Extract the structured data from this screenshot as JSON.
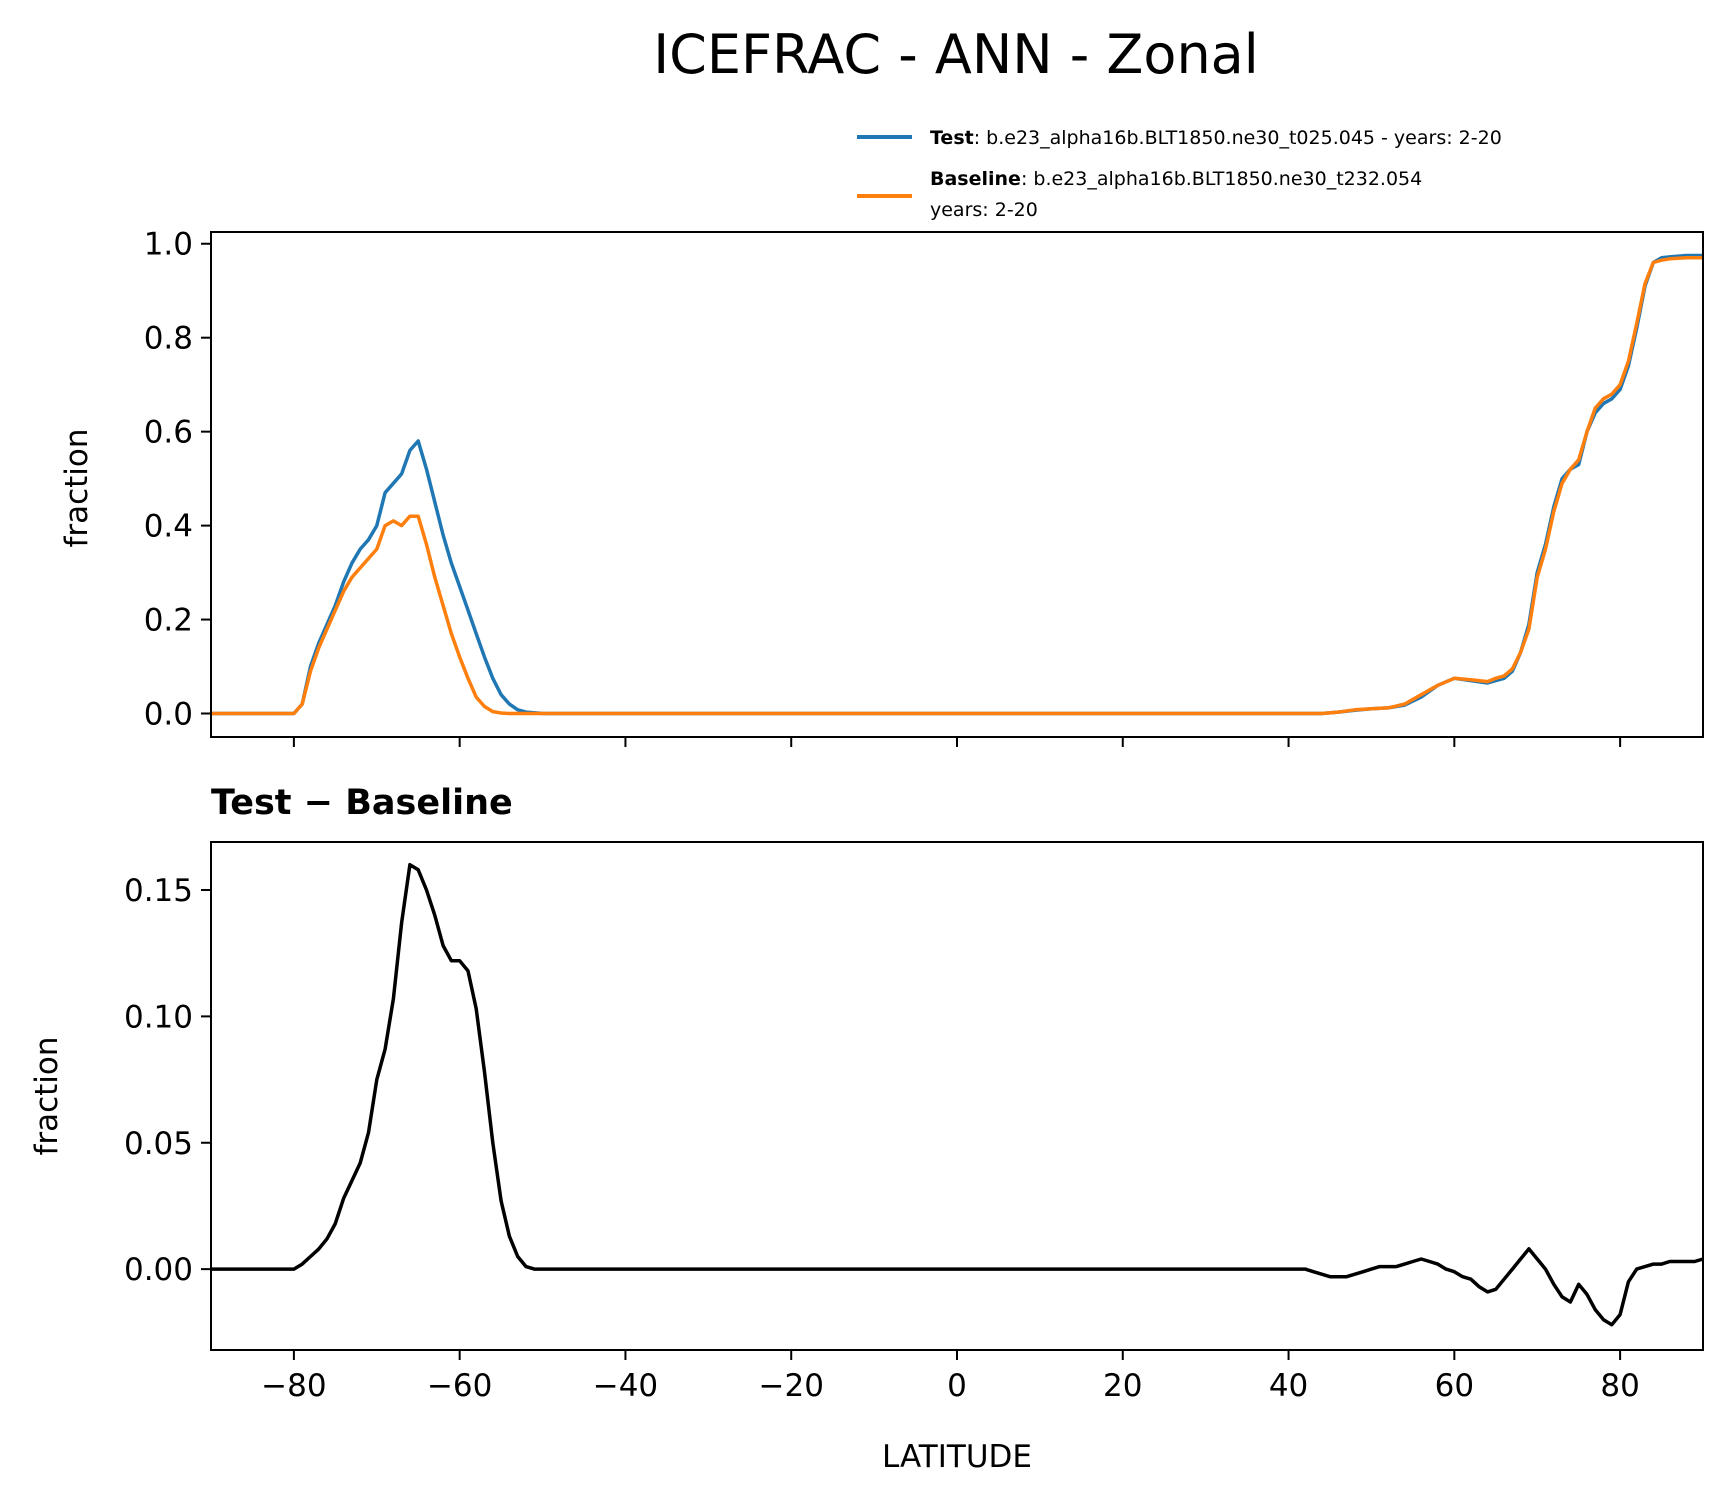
{
  "figure": {
    "title": "ICEFRAC - ANN - Zonal",
    "xlabel": "LATITUDE"
  },
  "legend": {
    "test_bold": "Test",
    "test_rest": ": b.e23_alpha16b.BLT1850.ne30_t025.045 - years: 2-20",
    "baseline_bold": "Baseline",
    "baseline_rest": ": b.e23_alpha16b.BLT1850.ne30_t232.054",
    "baseline_line2": "years: 2-20"
  },
  "colors": {
    "test": "#1f77b4",
    "baseline": "#ff7f0e",
    "diff": "#000000"
  },
  "chart_data": [
    {
      "type": "line",
      "title": "",
      "xlabel": "",
      "ylabel": "fraction",
      "xlim": [
        -90,
        90
      ],
      "ylim": [
        -0.05,
        1.025
      ],
      "xticks": [
        -80,
        -60,
        -40,
        -20,
        0,
        20,
        40,
        60,
        80
      ],
      "yticks": [
        0.0,
        0.2,
        0.4,
        0.6,
        0.8,
        1.0
      ],
      "ytick_labels": [
        "0.0",
        "0.2",
        "0.4",
        "0.6",
        "0.8",
        "1.0"
      ],
      "series": [
        {
          "name": "Test",
          "x": [
            -90,
            -80,
            -79,
            -78,
            -77,
            -76,
            -75,
            -74,
            -73,
            -72,
            -71,
            -70,
            -69,
            -68,
            -67,
            -66,
            -65,
            -64,
            -63,
            -62,
            -61,
            -60,
            -59,
            -58,
            -57,
            -56,
            -55,
            -54,
            -53,
            -52,
            -50,
            40,
            44,
            46,
            48,
            50,
            52,
            54,
            56,
            58,
            60,
            62,
            64,
            65,
            66,
            67,
            68,
            69,
            70,
            71,
            72,
            73,
            74,
            75,
            76,
            77,
            78,
            79,
            80,
            81,
            82,
            83,
            84,
            85,
            86,
            88,
            90
          ],
          "y": [
            0,
            0,
            0.02,
            0.1,
            0.15,
            0.19,
            0.23,
            0.28,
            0.32,
            0.35,
            0.37,
            0.4,
            0.47,
            0.49,
            0.51,
            0.56,
            0.58,
            0.52,
            0.45,
            0.38,
            0.32,
            0.27,
            0.22,
            0.17,
            0.12,
            0.075,
            0.04,
            0.02,
            0.008,
            0.003,
            0,
            0,
            0,
            0.003,
            0.007,
            0.01,
            0.012,
            0.018,
            0.035,
            0.06,
            0.075,
            0.07,
            0.065,
            0.07,
            0.075,
            0.09,
            0.13,
            0.19,
            0.3,
            0.36,
            0.44,
            0.5,
            0.52,
            0.53,
            0.6,
            0.64,
            0.66,
            0.67,
            0.69,
            0.74,
            0.82,
            0.91,
            0.96,
            0.97,
            0.972,
            0.975,
            0.975
          ]
        },
        {
          "name": "Baseline",
          "x": [
            -90,
            -80,
            -79,
            -78,
            -77,
            -76,
            -75,
            -74,
            -73,
            -72,
            -71,
            -70,
            -69,
            -68,
            -67,
            -66,
            -65,
            -64,
            -63,
            -62,
            -61,
            -60,
            -59,
            -58,
            -57,
            -56,
            -55,
            -54,
            -52,
            -50,
            40,
            44,
            46,
            48,
            50,
            52,
            54,
            56,
            58,
            60,
            62,
            64,
            65,
            66,
            67,
            68,
            69,
            70,
            71,
            72,
            73,
            74,
            75,
            76,
            77,
            78,
            79,
            80,
            81,
            82,
            83,
            84,
            85,
            86,
            88,
            90
          ],
          "y": [
            0,
            0,
            0.02,
            0.09,
            0.14,
            0.18,
            0.22,
            0.26,
            0.29,
            0.31,
            0.33,
            0.35,
            0.4,
            0.41,
            0.4,
            0.42,
            0.42,
            0.36,
            0.29,
            0.23,
            0.17,
            0.12,
            0.075,
            0.035,
            0.015,
            0.004,
            0.001,
            0,
            0,
            0,
            0,
            0,
            0.003,
            0.008,
            0.01,
            0.012,
            0.02,
            0.04,
            0.06,
            0.075,
            0.072,
            0.068,
            0.075,
            0.08,
            0.095,
            0.13,
            0.18,
            0.29,
            0.35,
            0.43,
            0.49,
            0.52,
            0.54,
            0.6,
            0.65,
            0.67,
            0.68,
            0.7,
            0.75,
            0.83,
            0.915,
            0.96,
            0.965,
            0.968,
            0.97,
            0.97
          ]
        }
      ]
    },
    {
      "type": "line",
      "title": "Test − Baseline",
      "xlabel": "LATITUDE",
      "ylabel": "fraction",
      "xlim": [
        -90,
        90
      ],
      "ylim": [
        -0.032,
        0.169
      ],
      "xticks": [
        -80,
        -60,
        -40,
        -20,
        0,
        20,
        40,
        60,
        80
      ],
      "xtick_labels": [
        "−80",
        "−60",
        "−40",
        "−20",
        "0",
        "20",
        "40",
        "60",
        "80"
      ],
      "yticks": [
        0.0,
        0.05,
        0.1,
        0.15
      ],
      "ytick_labels": [
        "0.00",
        "0.05",
        "0.10",
        "0.15"
      ],
      "series": [
        {
          "name": "Test − Baseline",
          "x": [
            -90,
            -80,
            -79,
            -78,
            -77,
            -76,
            -75,
            -74,
            -73,
            -72,
            -71,
            -70,
            -69,
            -68,
            -67,
            -66,
            -65,
            -64,
            -63,
            -62,
            -61,
            -60,
            -59,
            -58,
            -57,
            -56,
            -55,
            -54,
            -53,
            -52,
            -51,
            38,
            40,
            42,
            43,
            44,
            45,
            46,
            47,
            48,
            49,
            50,
            51,
            52,
            53,
            54,
            55,
            56,
            57,
            58,
            59,
            60,
            61,
            62,
            63,
            64,
            65,
            66,
            67,
            68,
            69,
            70,
            71,
            72,
            73,
            74,
            75,
            76,
            77,
            78,
            79,
            80,
            81,
            82,
            83,
            84,
            85,
            86,
            87,
            88,
            89,
            90
          ],
          "y": [
            0,
            0,
            0.002,
            0.005,
            0.008,
            0.012,
            0.018,
            0.028,
            0.035,
            0.042,
            0.054,
            0.075,
            0.087,
            0.107,
            0.137,
            0.16,
            0.158,
            0.15,
            0.14,
            0.128,
            0.122,
            0.122,
            0.118,
            0.103,
            0.078,
            0.05,
            0.027,
            0.013,
            0.005,
            0.001,
            0,
            0,
            0,
            0,
            -0.001,
            -0.002,
            -0.003,
            -0.003,
            -0.003,
            -0.002,
            -0.001,
            0,
            0.001,
            0.001,
            0.001,
            0.002,
            0.003,
            0.004,
            0.003,
            0.002,
            0,
            -0.001,
            -0.003,
            -0.004,
            -0.007,
            -0.009,
            -0.008,
            -0.004,
            0,
            0.004,
            0.008,
            0.004,
            0,
            -0.006,
            -0.011,
            -0.013,
            -0.006,
            -0.01,
            -0.016,
            -0.02,
            -0.022,
            -0.018,
            -0.005,
            0,
            0.001,
            0.002,
            0.002,
            0.003,
            0.003,
            0.003,
            0.003,
            0.004
          ]
        }
      ]
    }
  ]
}
